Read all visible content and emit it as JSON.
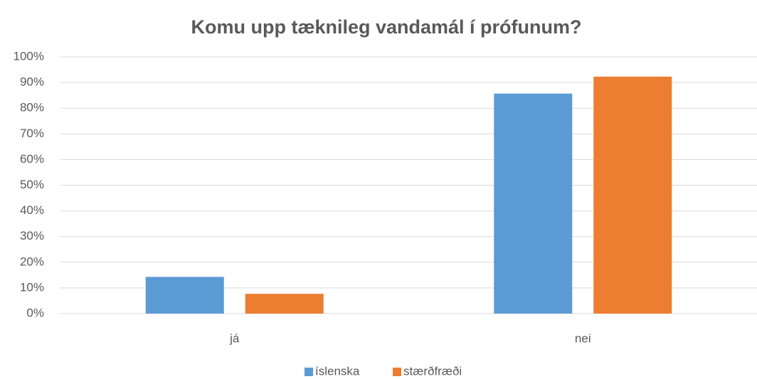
{
  "chart_data": {
    "type": "bar",
    "title": "Komu upp tæknileg vandamál í prófunum?",
    "categories": [
      "já",
      "nei"
    ],
    "series": [
      {
        "name": "íslenska",
        "color": "#5b9bd5",
        "values": [
          14.3,
          85.7
        ]
      },
      {
        "name": "stærðfræði",
        "color": "#ed7d31",
        "values": [
          7.7,
          92.3
        ]
      }
    ],
    "ylim": [
      0,
      100
    ],
    "yticks": [
      {
        "value": 0,
        "label": "0%"
      },
      {
        "value": 10,
        "label": "10%"
      },
      {
        "value": 20,
        "label": "20%"
      },
      {
        "value": 30,
        "label": "30%"
      },
      {
        "value": 40,
        "label": "40%"
      },
      {
        "value": 50,
        "label": "50%"
      },
      {
        "value": 60,
        "label": "60%"
      },
      {
        "value": 70,
        "label": "70%"
      },
      {
        "value": 80,
        "label": "80%"
      },
      {
        "value": 90,
        "label": "90%"
      },
      {
        "value": 100,
        "label": "100%"
      }
    ],
    "grid": true,
    "legend": "bottom"
  }
}
